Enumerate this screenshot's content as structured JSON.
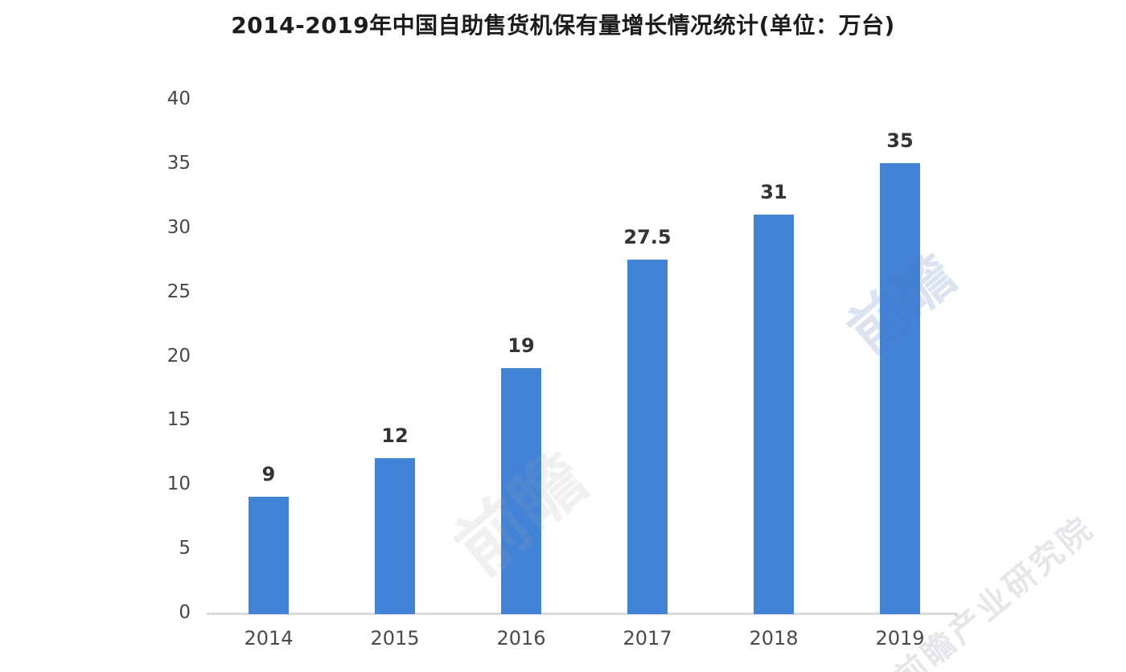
{
  "chart_data": {
    "type": "bar",
    "title": "2014-2019年中国自助售货机保有量增长情况统计(单位：万台)",
    "categories": [
      "2014",
      "2015",
      "2016",
      "2017",
      "2018",
      "2019"
    ],
    "values": [
      9,
      12,
      19,
      27.5,
      31,
      35
    ],
    "value_labels": [
      "9",
      "12",
      "19",
      "27.5",
      "31",
      "35"
    ],
    "xlabel": "",
    "ylabel": "",
    "ylim": [
      0,
      40
    ],
    "yticks": [
      0,
      5,
      10,
      15,
      20,
      25,
      30,
      35,
      40
    ],
    "grid": false,
    "legend_position": "none",
    "bar_color": "#4283d8",
    "axis_line_color": "#dbdbdb",
    "tick_label_color": "#474747",
    "value_label_color": "#333333",
    "title_color": "#1c1c1c"
  },
  "watermark": {
    "short_text": "前瞻",
    "long_text": "前瞻产业研究院"
  }
}
